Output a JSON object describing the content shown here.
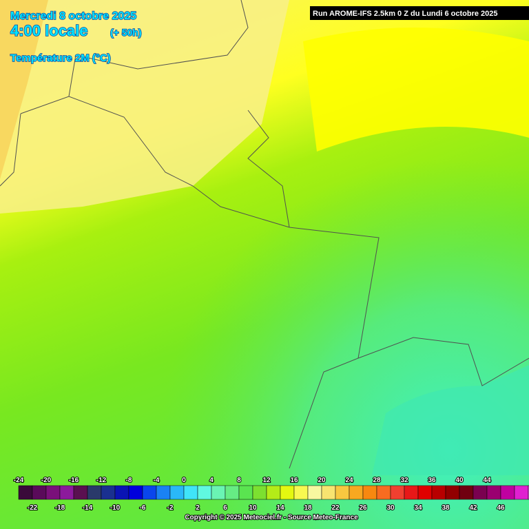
{
  "header": {
    "date": "Mercredi 8 octobre 2025",
    "time": "4:00 locale",
    "lead": "(+ 50h)",
    "variable": "Température 2M (°C)"
  },
  "run": "Run AROME-IFS 2.5km 0 Z du Lundi 6 octobre 2025",
  "legend": {
    "labels": [
      -24,
      -22,
      -20,
      -18,
      -16,
      -14,
      -12,
      -10,
      -8,
      -6,
      -4,
      -2,
      0,
      2,
      4,
      6,
      8,
      10,
      12,
      14,
      16,
      18,
      20,
      22,
      24,
      26,
      28,
      30,
      32,
      34,
      36,
      38,
      40,
      42,
      44,
      46
    ],
    "colors": [
      "#3a0a3a",
      "#5a0a5a",
      "#7a107a",
      "#8c1a9c",
      "#5a1050",
      "#2a3a6a",
      "#1a3090",
      "#0a14b4",
      "#0000dc",
      "#0a46ec",
      "#1a82f4",
      "#2ab8f8",
      "#40e4f8",
      "#60f8e0",
      "#6af4b4",
      "#66ec84",
      "#5ae450",
      "#7ce030",
      "#b4ec18",
      "#e4f810",
      "#f8f850",
      "#f8f8a0",
      "#f8e470",
      "#f8c840",
      "#f8a820",
      "#f88810",
      "#f86c20",
      "#f04030",
      "#e81818",
      "#e00000",
      "#b80000",
      "#920000",
      "#700010",
      "#7a0050",
      "#9a0070",
      "#c000a0"
    ],
    "extra_colors": [
      "#e020d0",
      "#f070ec"
    ]
  },
  "copyright": "Copyright © 2025 Meteociel.fr - Source Meteo-France"
}
